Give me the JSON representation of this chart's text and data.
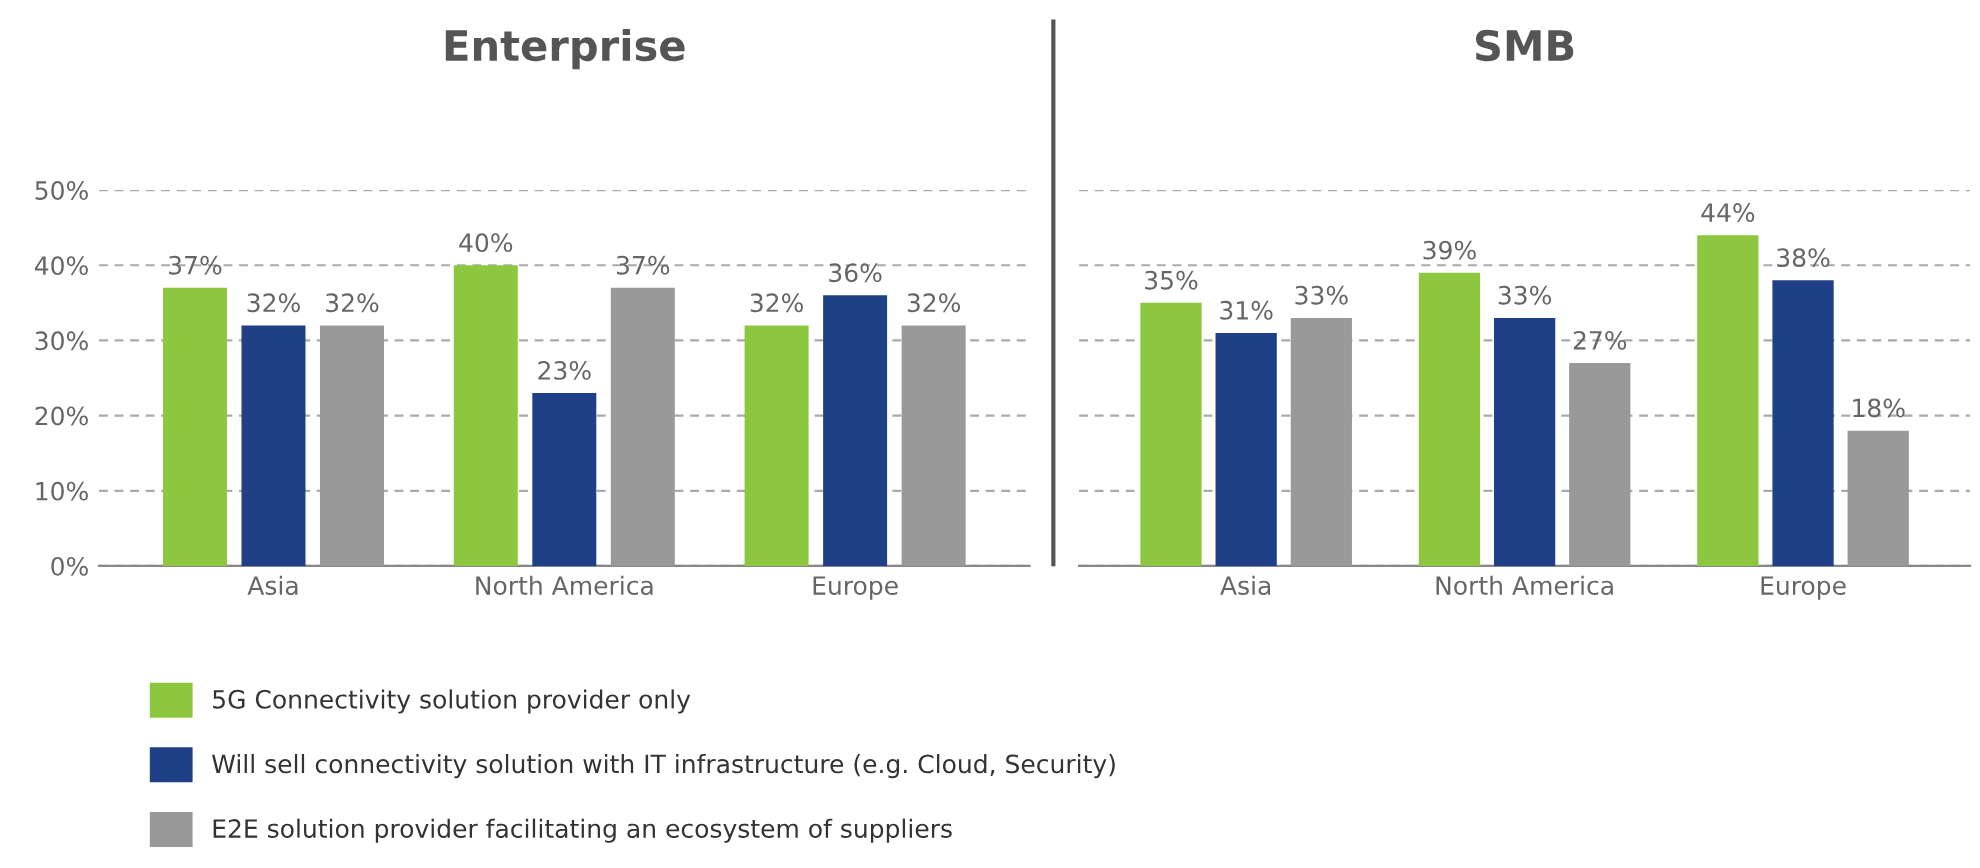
{
  "chart_data": [
    {
      "type": "bar",
      "title": "Enterprise",
      "categories": [
        "Asia",
        "North America",
        "Europe"
      ],
      "series": [
        {
          "name": "5G Connectivity solution provider only",
          "color": "#8dc63f",
          "values": [
            37,
            40,
            32
          ]
        },
        {
          "name": "Will sell connectivity solution with IT infrastructure (e.g. Cloud, Security)",
          "color": "#1f3f86",
          "values": [
            32,
            23,
            36
          ]
        },
        {
          "name": "E2E solution provider facilitating an ecosystem of suppliers",
          "color": "#999999",
          "values": [
            32,
            37,
            32
          ]
        }
      ],
      "ylim": [
        0,
        50
      ],
      "yticks": [
        {
          "value": 0,
          "label": "0%"
        },
        {
          "value": 10,
          "label": "10%"
        },
        {
          "value": 20,
          "label": "20%"
        },
        {
          "value": 30,
          "label": "30%"
        },
        {
          "value": 40,
          "label": "40%"
        },
        {
          "value": 50,
          "label": "50%"
        }
      ],
      "grid": "y",
      "legend": "bottom",
      "value_labels": [
        [
          "37%",
          "40%",
          "32%"
        ],
        [
          "32%",
          "23%",
          "36%"
        ],
        [
          "32%",
          "37%",
          "32%"
        ]
      ]
    },
    {
      "type": "bar",
      "title": "SMB",
      "categories": [
        "Asia",
        "North America",
        "Europe"
      ],
      "series": [
        {
          "color": "#8dc63f",
          "values": [
            35,
            39,
            44
          ]
        },
        {
          "color": "#1f3f86",
          "values": [
            31,
            33,
            38
          ]
        },
        {
          "color": "#999999",
          "values": [
            33,
            27,
            18
          ]
        }
      ],
      "ylim": [
        0,
        50
      ],
      "yticks": [
        {
          "value": 0,
          "label": null
        },
        {
          "value": 10,
          "label": null
        },
        {
          "value": 20,
          "label": null
        },
        {
          "value": 30,
          "label": null
        },
        {
          "value": 40,
          "label": null
        },
        {
          "value": 50,
          "label": null
        }
      ],
      "grid": "y",
      "tick_labels": "x",
      "value_labels": [
        [
          "35%",
          "39%",
          "44%"
        ],
        [
          "31%",
          "33%",
          "38%"
        ],
        [
          "33%",
          "27%",
          "18%"
        ]
      ]
    }
  ]
}
